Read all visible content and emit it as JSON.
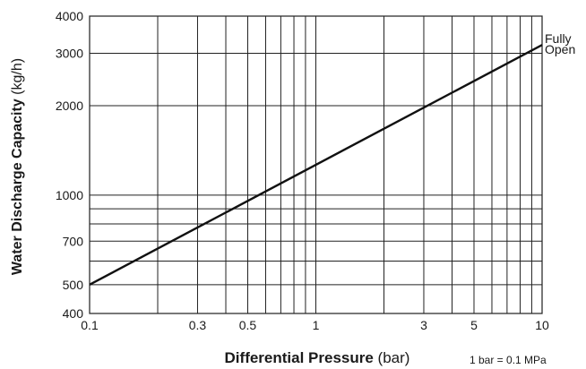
{
  "chart_data": {
    "type": "line",
    "title": "",
    "xlabel": "Differential Pressure",
    "xlabel_unit": " (bar)",
    "ylabel": "Water Discharge Capacity",
    "ylabel_unit": " (kg/h)",
    "xscale": "log",
    "yscale": "log",
    "xlim": [
      0.1,
      10
    ],
    "ylim": [
      400,
      4000
    ],
    "x_ticks": [
      0.1,
      0.3,
      0.5,
      1,
      3,
      5,
      10
    ],
    "x_tick_labels": [
      "0.1",
      "0.3",
      "0.5",
      "1",
      "3",
      "5",
      "10"
    ],
    "y_ticks": [
      400,
      500,
      700,
      1000,
      2000,
      3000,
      4000
    ],
    "y_tick_labels": [
      "400",
      "500",
      "700",
      "1000",
      "2000",
      "3000",
      "4000"
    ],
    "x_grid": [
      0.1,
      0.2,
      0.3,
      0.4,
      0.5,
      0.6,
      0.7,
      0.8,
      0.9,
      1,
      2,
      3,
      4,
      5,
      6,
      7,
      8,
      9,
      10
    ],
    "y_grid": [
      400,
      500,
      600,
      700,
      800,
      900,
      1000,
      2000,
      3000,
      4000
    ],
    "grid": true,
    "series": [
      {
        "label_lines": [
          "Fully",
          "Open"
        ],
        "x": [
          0.1,
          10
        ],
        "y": [
          500,
          3200
        ]
      }
    ],
    "note": "1 bar = 0.1 MPa"
  }
}
